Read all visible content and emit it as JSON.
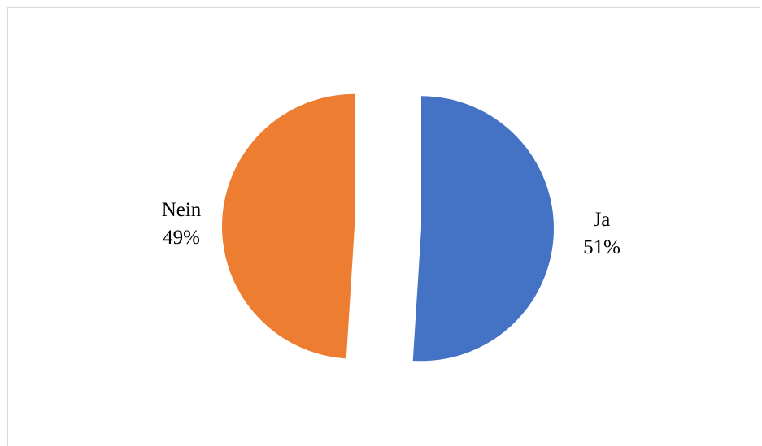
{
  "chart_data": {
    "type": "pie",
    "title": "",
    "categories": [
      "Ja",
      "Nein"
    ],
    "values": [
      51,
      49
    ],
    "labels": [
      {
        "name": "Ja",
        "percent": "51%"
      },
      {
        "name": "Nein",
        "percent": "49%"
      }
    ],
    "colors": [
      "#4472c4",
      "#ed7d31"
    ],
    "exploded": true,
    "legend": "none",
    "start_angle_deg": 0,
    "direction": "clockwise"
  }
}
